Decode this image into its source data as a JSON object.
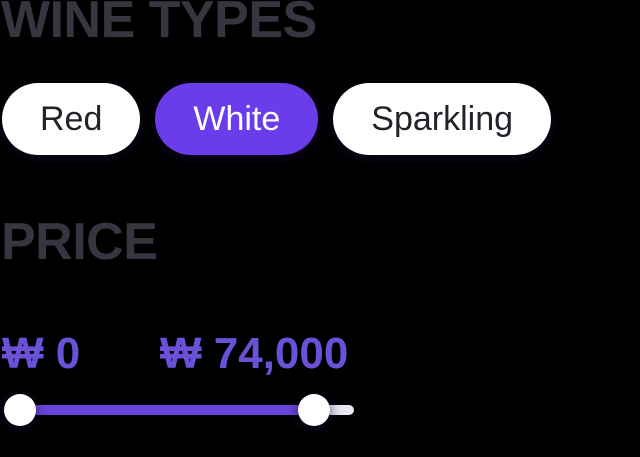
{
  "colors": {
    "background": "#000000",
    "heading": "#363640",
    "accent_purple": "#6b3ce9",
    "track_purple": "#6b46de",
    "label_purple": "#6b50d8",
    "track_rest": "#eae7f3",
    "pill_bg": "#ffffff",
    "pill_text": "#222229",
    "selected_pill_text": "#ffffff"
  },
  "wine_types": {
    "heading": "WINE TYPES",
    "options": [
      {
        "label": "Red",
        "selected": false
      },
      {
        "label": "White",
        "selected": true
      },
      {
        "label": "Sparkling",
        "selected": false
      }
    ]
  },
  "price": {
    "heading": "PRICE",
    "currency_symbol": "₩",
    "min_label": "₩ 0",
    "max_label": "₩ 74,000",
    "min_value": 0,
    "max_value": 74000,
    "slider": {
      "min_percent": 0,
      "max_percent": 88
    }
  }
}
